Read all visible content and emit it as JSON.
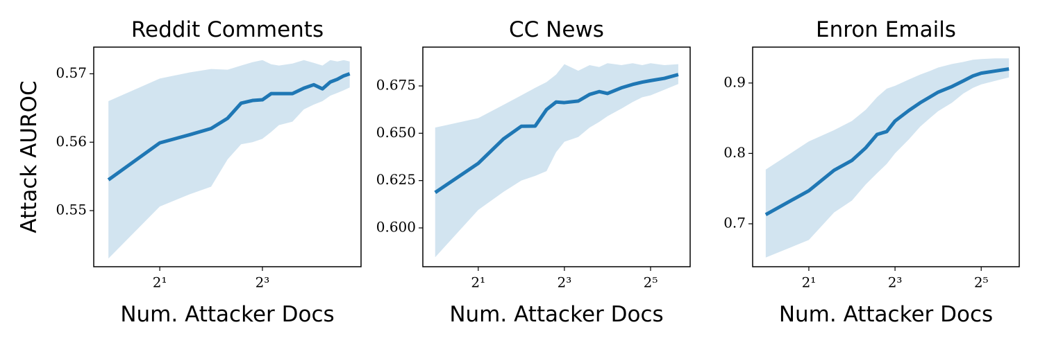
{
  "chart_data": [
    {
      "type": "line",
      "title": "Reddit Comments",
      "xlabel": "Num. Attacker Docs",
      "ylabel": "Attack AUROC",
      "xscale": "log2",
      "x": [
        1,
        2,
        3,
        4,
        5,
        6,
        7,
        8,
        9,
        10,
        12,
        14,
        16,
        18,
        20,
        22,
        24,
        26
      ],
      "series": [
        {
          "color": "#1f77b4",
          "values": [
            0.5545,
            0.5599,
            0.5611,
            0.562,
            0.5635,
            0.5657,
            0.5661,
            0.5662,
            0.5671,
            0.5671,
            0.5671,
            0.5679,
            0.5684,
            0.5678,
            0.5688,
            0.5692,
            0.5697,
            0.57
          ],
          "lower": [
            0.543,
            0.5506,
            0.5524,
            0.5535,
            0.5575,
            0.5597,
            0.56,
            0.5605,
            0.5615,
            0.5625,
            0.563,
            0.5648,
            0.5655,
            0.566,
            0.5668,
            0.5672,
            0.5676,
            0.568
          ],
          "upper": [
            0.566,
            0.5693,
            0.5702,
            0.5707,
            0.5706,
            0.5712,
            0.5717,
            0.572,
            0.5714,
            0.5712,
            0.5715,
            0.572,
            0.5716,
            0.5712,
            0.572,
            0.5718,
            0.572,
            0.5718
          ]
        }
      ],
      "xlim": [
        0.82,
        30.3
      ],
      "xticks": [
        {
          "value": 2,
          "label": "2¹"
        },
        {
          "value": 8,
          "label": "2³"
        }
      ],
      "ylim": [
        0.5418,
        0.5739
      ],
      "yticks": [
        0.55,
        0.56,
        0.57
      ]
    },
    {
      "type": "line",
      "title": "CC News",
      "xlabel": "Num. Attacker Docs",
      "xscale": "log2",
      "x": [
        1,
        2,
        3,
        4,
        5,
        6,
        7,
        8,
        10,
        12,
        14,
        16,
        20,
        24,
        28,
        32,
        40,
        50
      ],
      "series": [
        {
          "color": "#1f77b4",
          "values": [
            0.6187,
            0.6341,
            0.647,
            0.6537,
            0.6538,
            0.6625,
            0.6665,
            0.6662,
            0.667,
            0.6705,
            0.672,
            0.671,
            0.674,
            0.6758,
            0.677,
            0.6778,
            0.679,
            0.681
          ],
          "lower": [
            0.5845,
            0.6095,
            0.619,
            0.625,
            0.6275,
            0.63,
            0.64,
            0.6455,
            0.648,
            0.653,
            0.656,
            0.659,
            0.663,
            0.6665,
            0.669,
            0.67,
            0.673,
            0.676
          ],
          "upper": [
            0.653,
            0.658,
            0.665,
            0.67,
            0.674,
            0.677,
            0.681,
            0.6865,
            0.683,
            0.686,
            0.685,
            0.687,
            0.686,
            0.687,
            0.686,
            0.687,
            0.686,
            0.6865
          ]
        }
      ],
      "xlim": [
        0.82,
        60.5
      ],
      "xticks": [
        {
          "value": 2,
          "label": "2¹"
        },
        {
          "value": 8,
          "label": "2³"
        },
        {
          "value": 32,
          "label": "2⁵"
        }
      ],
      "ylim": [
        0.5795,
        0.6955
      ],
      "yticks": [
        {
          "value": 0.6,
          "label": "0.600"
        },
        0.625,
        {
          "value": 0.65,
          "label": "0.650"
        },
        0.675
      ]
    },
    {
      "type": "line",
      "title": "Enron Emails",
      "xlabel": "Num. Attacker Docs",
      "xscale": "log2",
      "x": [
        1,
        2,
        3,
        4,
        5,
        6,
        7,
        8,
        10,
        12,
        14,
        16,
        20,
        24,
        28,
        32,
        40,
        50
      ],
      "series": [
        {
          "color": "#1f77b4",
          "values": [
            0.713,
            0.747,
            0.776,
            0.79,
            0.808,
            0.827,
            0.831,
            0.846,
            0.861,
            0.872,
            0.88,
            0.887,
            0.895,
            0.903,
            0.91,
            0.914,
            0.917,
            0.92
          ],
          "lower": [
            0.652,
            0.677,
            0.716,
            0.733,
            0.756,
            0.772,
            0.785,
            0.8,
            0.82,
            0.838,
            0.85,
            0.86,
            0.872,
            0.885,
            0.893,
            0.898,
            0.903,
            0.908
          ],
          "upper": [
            0.777,
            0.817,
            0.833,
            0.846,
            0.862,
            0.88,
            0.892,
            0.896,
            0.905,
            0.912,
            0.917,
            0.922,
            0.927,
            0.93,
            0.933,
            0.934,
            0.935,
            0.935
          ]
        }
      ],
      "xlim": [
        0.81,
        59
      ],
      "xticks": [
        {
          "value": 2,
          "label": "2¹"
        },
        {
          "value": 8,
          "label": "2³"
        },
        {
          "value": 32,
          "label": "2⁵"
        }
      ],
      "ylim": [
        0.639,
        0.951
      ],
      "yticks": [
        0.7,
        0.8,
        0.9
      ]
    }
  ]
}
